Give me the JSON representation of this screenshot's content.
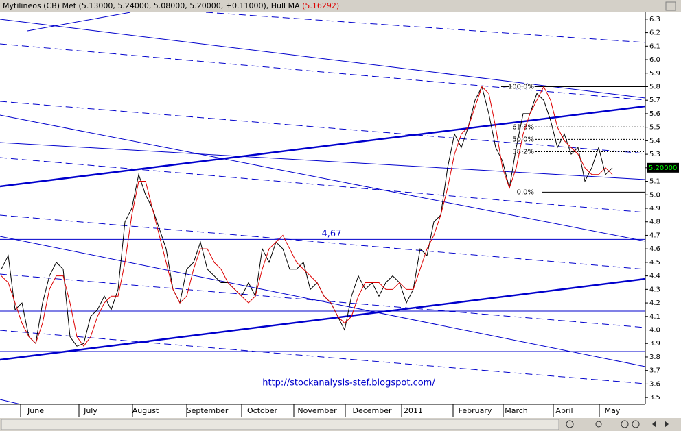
{
  "chart_data": {
    "type": "line",
    "title": "Mytilineos (CB) Met (5.13000, 5.24000, 5.08000, 5.20000, +0.11000), Hull MA",
    "hull_value_label": "(5.16292)",
    "last_value_label": "5.20000",
    "last_value": 5.2,
    "watermark": "http://stockanalysis-stef.blogspot.com/",
    "categories": [
      null,
      null,
      null,
      null,
      null,
      "June",
      null,
      null,
      null,
      null,
      null,
      null,
      null,
      "July",
      null,
      null,
      null,
      null,
      null,
      null,
      null,
      "August",
      null,
      null,
      null,
      null,
      null,
      null,
      null,
      null,
      "September",
      null,
      null,
      null,
      null,
      null,
      null,
      null,
      "October",
      null,
      null,
      null,
      null,
      null,
      null,
      null,
      "November",
      null,
      null,
      null,
      null,
      null,
      null,
      null,
      "December",
      null,
      null,
      null,
      null,
      null,
      "2011",
      null,
      null,
      null,
      null,
      null,
      null,
      null,
      null,
      "February",
      null,
      null,
      null,
      null,
      null,
      "March",
      null,
      null,
      null,
      null,
      null,
      null,
      "April",
      null,
      null,
      null,
      null,
      null,
      null,
      "May"
    ],
    "series": [
      {
        "name": "Met",
        "color": "#000000",
        "values": [
          4.45,
          4.55,
          4.15,
          4.2,
          3.95,
          3.9,
          4.2,
          4.4,
          4.5,
          4.45,
          3.95,
          3.88,
          3.9,
          4.1,
          4.15,
          4.25,
          4.15,
          4.3,
          4.8,
          4.9,
          5.15,
          5.0,
          4.9,
          4.75,
          4.6,
          4.3,
          4.2,
          4.45,
          4.5,
          4.65,
          4.45,
          4.4,
          4.35,
          4.35,
          4.3,
          4.25,
          4.35,
          4.25,
          4.6,
          4.5,
          4.65,
          4.6,
          4.45,
          4.45,
          4.5,
          4.3,
          4.35,
          4.25,
          4.2,
          4.1,
          4.0,
          4.25,
          4.4,
          4.3,
          4.35,
          4.25,
          4.35,
          4.4,
          4.35,
          4.2,
          4.3,
          4.6,
          4.55,
          4.8,
          4.85,
          5.2,
          5.45,
          5.35,
          5.5,
          5.7,
          5.8,
          5.6,
          5.35,
          5.25,
          5.05,
          5.35,
          5.6,
          5.6,
          5.75,
          5.7,
          5.55,
          5.35,
          5.45,
          5.3,
          5.35,
          5.1,
          5.2,
          5.35,
          5.15,
          5.2
        ]
      },
      {
        "name": "Hull MA",
        "color": "#dd0000",
        "values": [
          4.4,
          4.35,
          4.2,
          4.05,
          3.95,
          3.9,
          4.05,
          4.3,
          4.4,
          4.4,
          4.2,
          3.95,
          3.88,
          3.95,
          4.1,
          4.2,
          4.25,
          4.25,
          4.5,
          4.85,
          5.1,
          5.1,
          4.9,
          4.7,
          4.5,
          4.3,
          4.2,
          4.25,
          4.45,
          4.6,
          4.6,
          4.5,
          4.45,
          4.35,
          4.3,
          4.25,
          4.2,
          4.25,
          4.45,
          4.6,
          4.65,
          4.7,
          4.6,
          4.5,
          4.45,
          4.4,
          4.35,
          4.25,
          4.2,
          4.1,
          4.05,
          4.1,
          4.25,
          4.35,
          4.35,
          4.35,
          4.3,
          4.3,
          4.35,
          4.3,
          4.3,
          4.45,
          4.6,
          4.7,
          4.85,
          5.05,
          5.3,
          5.45,
          5.5,
          5.65,
          5.8,
          5.75,
          5.5,
          5.2,
          5.05,
          5.2,
          5.45,
          5.6,
          5.7,
          5.8,
          5.7,
          5.5,
          5.4,
          5.35,
          5.3,
          5.2,
          5.15,
          5.15,
          5.2,
          5.15
        ]
      }
    ],
    "ylim": [
      3.45,
      6.35
    ],
    "yticks": [
      6.3,
      6.2,
      6.1,
      {
        "value": 6.0,
        "label": "6.0"
      },
      5.9,
      5.8,
      5.7,
      5.6,
      5.5,
      5.4,
      5.3,
      5.2,
      5.1,
      {
        "value": 5.0,
        "label": "5.0"
      },
      4.9,
      4.8,
      4.7,
      4.6,
      4.5,
      4.4,
      4.3,
      4.2,
      4.1,
      {
        "value": 4.0,
        "label": "4.0"
      },
      3.9,
      3.8,
      3.7,
      3.6,
      3.5
    ],
    "annotations": [
      {
        "text": "4,67",
        "value": 4.67
      }
    ],
    "fibonacci": {
      "low": 5.02,
      "high": 5.8,
      "levels": [
        {
          "label": "100.0%",
          "value": 100
        },
        {
          "label": "61.8%",
          "value": 61.8
        },
        {
          "label": "50.0%",
          "value": 50
        },
        {
          "label": "38.2%",
          "value": 38.2
        },
        {
          "label": "0.0%",
          "value": 0
        }
      ]
    }
  }
}
